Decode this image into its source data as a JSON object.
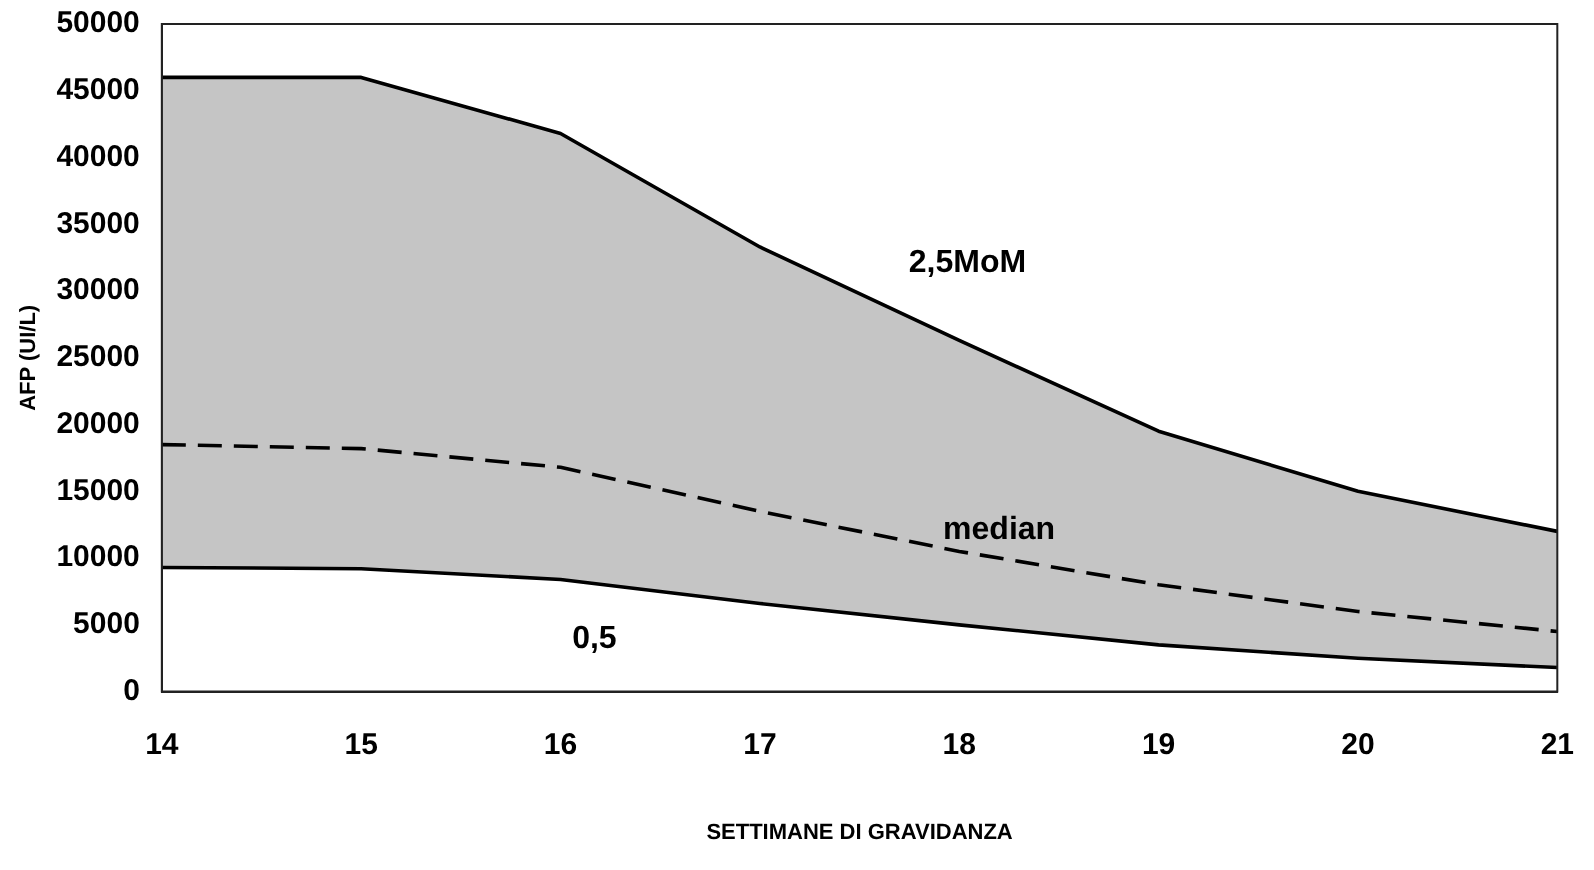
{
  "chart_data": {
    "type": "line",
    "xlabel": "SETTIMANE DI GRAVIDANZA",
    "ylabel": "AFP (UI/L)",
    "x": [
      14,
      15,
      16,
      17,
      18,
      19,
      20,
      21
    ],
    "series": [
      {
        "name": "2,5MoM",
        "color": "#000000",
        "line_style": "solid",
        "values": [
          46000,
          46000,
          41800,
          33300,
          26300,
          19500,
          15000,
          12000
        ]
      },
      {
        "name": "median",
        "color": "#000000",
        "line_style": "dashed",
        "values": [
          18500,
          18200,
          16800,
          13500,
          10500,
          8000,
          6000,
          4500
        ],
        "lower": [
          9300,
          9200,
          8400,
          6600,
          5000,
          3500,
          2500,
          1800
        ],
        "upper": [
          46000,
          46000,
          41800,
          33300,
          26300,
          19500,
          15000,
          12000
        ]
      },
      {
        "name": "0,5",
        "color": "#000000",
        "line_style": "solid",
        "values": [
          9300,
          9200,
          8400,
          6600,
          5000,
          3500,
          2500,
          1800
        ]
      }
    ],
    "xlim": [
      14,
      21
    ],
    "xticks": [
      14,
      15,
      16,
      17,
      18,
      19,
      20,
      21
    ],
    "ylim": [
      0,
      50000
    ],
    "yticks": [
      0,
      5000,
      10000,
      15000,
      20000,
      25000,
      30000,
      35000,
      40000,
      45000,
      50000
    ],
    "grid": false,
    "legend": false,
    "marker": "none"
  }
}
